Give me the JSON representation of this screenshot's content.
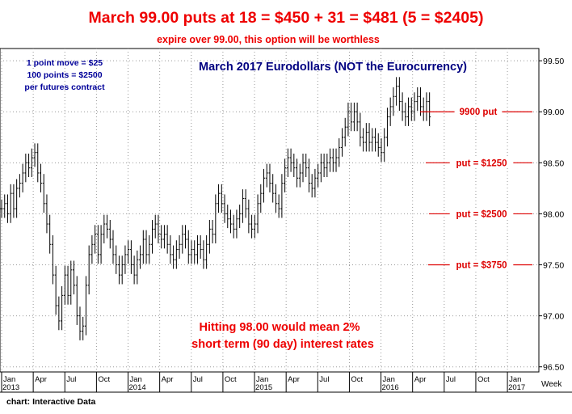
{
  "chart_data": {
    "type": "bar",
    "title": "March 99.00 puts at 18 = $450 + 31 = $481 (5 = $2405)",
    "subtitle": "expire over 99.00, this option will be worthless",
    "inner_title": "March 2017 Eurodollars (NOT the Eurocurrency)",
    "note_lines": [
      "1 point move = $25",
      "100 points = $2500",
      "per futures contract"
    ],
    "annotation_lines": [
      "Hitting 98.00 would mean 2%",
      "short term (90 day) interest rates"
    ],
    "source": "chart: Interactive Data",
    "x_axis_unit": "Week",
    "ylim": [
      96.45,
      99.62
    ],
    "y_ticks": [
      "96.50",
      "97.00",
      "97.50",
      "98.00",
      "98.50",
      "99.00",
      "99.50"
    ],
    "x_months": [
      {
        "label": "Jan",
        "year": "2013"
      },
      {
        "label": "Apr"
      },
      {
        "label": "Jul"
      },
      {
        "label": "Oct"
      },
      {
        "label": "Jan",
        "year": "2014"
      },
      {
        "label": "Apr"
      },
      {
        "label": "Jul"
      },
      {
        "label": "Oct"
      },
      {
        "label": "Jan",
        "year": "2015"
      },
      {
        "label": "Apr"
      },
      {
        "label": "Jul"
      },
      {
        "label": "Oct"
      },
      {
        "label": "Jan",
        "year": "2016"
      },
      {
        "label": "Apr"
      },
      {
        "label": "Jul"
      },
      {
        "label": "Oct"
      },
      {
        "label": "Jan",
        "year": "2017"
      }
    ],
    "levels": [
      {
        "label": "9900 put",
        "price": 99.0,
        "color": "#dd0000"
      },
      {
        "label": "put = $1250",
        "price": 98.5,
        "color": "#dd0000"
      },
      {
        "label": "put = $2500",
        "price": 98.0,
        "color": "#dd0000"
      },
      {
        "label": "put = $3750",
        "price": 97.5,
        "color": "#dd0000"
      }
    ],
    "weekly_close": [
      98.05,
      98.1,
      98.0,
      98.2,
      98.05,
      98.25,
      98.3,
      98.4,
      98.5,
      98.45,
      98.55,
      98.6,
      98.4,
      98.3,
      98.1,
      97.9,
      97.7,
      97.4,
      97.1,
      96.95,
      97.2,
      97.4,
      97.2,
      97.45,
      97.3,
      97.0,
      96.85,
      96.9,
      97.3,
      97.6,
      97.7,
      97.8,
      97.6,
      97.8,
      97.9,
      97.85,
      97.75,
      97.6,
      97.5,
      97.4,
      97.5,
      97.6,
      97.65,
      97.5,
      97.4,
      97.55,
      97.6,
      97.75,
      97.6,
      97.7,
      97.85,
      97.9,
      97.8,
      97.75,
      97.8,
      97.7,
      97.6,
      97.55,
      97.65,
      97.7,
      97.8,
      97.75,
      97.6,
      97.65,
      97.6,
      97.7,
      97.65,
      97.55,
      97.7,
      97.85,
      97.8,
      98.1,
      98.2,
      98.1,
      98.0,
      97.95,
      97.9,
      97.85,
      97.95,
      98.0,
      98.15,
      98.05,
      97.9,
      97.85,
      97.9,
      98.1,
      98.2,
      98.35,
      98.4,
      98.3,
      98.2,
      98.1,
      98.05,
      98.3,
      98.45,
      98.55,
      98.5,
      98.45,
      98.35,
      98.4,
      98.5,
      98.45,
      98.3,
      98.25,
      98.35,
      98.4,
      98.5,
      98.45,
      98.5,
      98.55,
      98.5,
      98.55,
      98.65,
      98.75,
      98.85,
      99.0,
      98.9,
      99.0,
      98.9,
      98.75,
      98.7,
      98.8,
      98.7,
      98.75,
      98.7,
      98.65,
      98.6,
      98.75,
      98.95,
      99.05,
      99.15,
      99.25,
      99.1,
      99.0,
      98.95,
      99.05,
      99.0,
      99.1,
      99.15,
      99.05,
      99.0,
      99.1,
      98.95
    ]
  },
  "colors": {
    "title": "#ee0000",
    "inner_title": "#000080",
    "note": "#000099",
    "annotation": "#ee0000",
    "bar": "#000000",
    "level": "#dd0000"
  }
}
